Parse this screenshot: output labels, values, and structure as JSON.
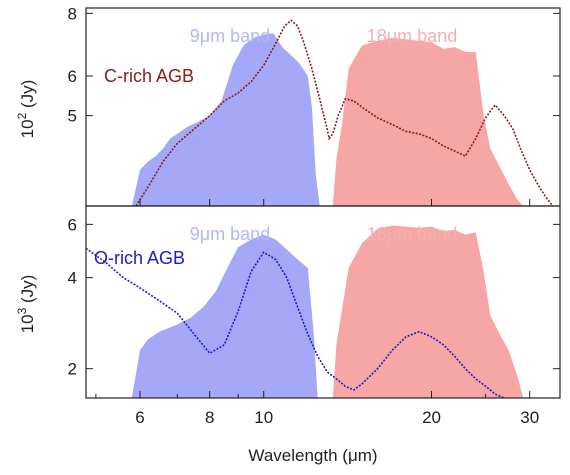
{
  "chart_data": {
    "type": "area",
    "xlabel": "Wavelength (μm)",
    "x_scale": "log",
    "xlim": [
      4.8,
      34
    ],
    "x_ticks": [
      6,
      8,
      10,
      20,
      30
    ],
    "x_tick_labels": [
      "6",
      "8",
      "10",
      "20",
      "30"
    ],
    "colors": {
      "band9": "#a4a8f7",
      "band18": "#f7a6a6",
      "crich": "#8b1a1a",
      "orich": "#1c1cc8",
      "band9_text": "#b3b7f5",
      "band18_text": "#f5b0b0"
    },
    "panels": [
      {
        "ylabel_base": "10",
        "ylabel_exp": "2",
        "ylabel_unit": " (Jy)",
        "y_scale": "log",
        "ylim": [
          3.3,
          8.2
        ],
        "y_ticks": [
          5,
          6,
          8
        ],
        "y_tick_labels": [
          "5",
          "6",
          "8"
        ],
        "band_labels": {
          "band9": "9μm band",
          "band18": "18μm band"
        },
        "curve_label": "C-rich AGB",
        "series": [
          {
            "name": "C-rich AGB",
            "x": [
              5.9,
              6.2,
              6.6,
              7.0,
              7.5,
              8.0,
              8.5,
              9.0,
              9.5,
              10.0,
              10.5,
              10.9,
              11.2,
              11.5,
              11.8,
              12.2,
              12.6,
              13.0,
              13.1,
              13.3,
              13.6,
              14.0,
              14.5,
              15.0,
              16.0,
              17.0,
              18.0,
              19.0,
              20.0,
              21.0,
              22.0,
              23.0,
              24.0,
              25.0,
              26.0,
              27.0,
              28.0,
              29.0,
              30.0,
              31.0,
              32.0,
              33.0
            ],
            "y": [
              3.3,
              3.6,
              4.05,
              4.4,
              4.7,
              5.0,
              5.35,
              5.55,
              5.85,
              6.3,
              6.95,
              7.55,
              7.75,
              7.55,
              7.0,
              6.2,
              5.4,
              4.7,
              4.5,
              4.6,
              5.0,
              5.4,
              5.35,
              5.2,
              4.95,
              4.8,
              4.65,
              4.6,
              4.5,
              4.35,
              4.25,
              4.15,
              4.5,
              4.95,
              5.25,
              5.0,
              4.7,
              4.25,
              3.9,
              3.65,
              3.45,
              3.3
            ]
          }
        ],
        "bands": [
          {
            "name": "band9",
            "x": [
              5.8,
              6.0,
              6.2,
              6.4,
              6.6,
              6.8,
              7.0,
              7.3,
              7.6,
              8.0,
              8.4,
              8.8,
              9.2,
              9.6,
              10.0,
              10.4,
              10.8,
              11.2,
              11.6,
              12.0,
              12.2,
              12.4,
              12.6
            ],
            "y": [
              3.3,
              3.9,
              4.05,
              4.15,
              4.3,
              4.5,
              4.6,
              4.75,
              4.85,
              5.0,
              5.35,
              6.3,
              6.9,
              7.15,
              7.25,
              7.3,
              6.85,
              6.6,
              6.35,
              6.0,
              5.2,
              3.8,
              3.3
            ]
          },
          {
            "name": "band18",
            "x": [
              13.3,
              13.5,
              13.8,
              14.2,
              15.0,
              16.0,
              17.0,
              18.0,
              19.0,
              20.0,
              21.0,
              22.0,
              23.0,
              24.0,
              24.8,
              25.5,
              26.5,
              27.5,
              28.5,
              29.2
            ],
            "y": [
              3.3,
              4.1,
              4.75,
              6.2,
              6.9,
              7.05,
              7.15,
              7.1,
              7.05,
              7.0,
              6.8,
              6.85,
              6.7,
              6.7,
              5.0,
              4.3,
              3.95,
              3.65,
              3.4,
              3.3
            ]
          }
        ]
      },
      {
        "ylabel_base": "10",
        "ylabel_exp": "3",
        "ylabel_unit": " (Jy)",
        "y_scale": "log",
        "ylim": [
          1.6,
          6.9
        ],
        "y_ticks": [
          2,
          4,
          6
        ],
        "y_tick_labels": [
          "2",
          "4",
          "6"
        ],
        "band_labels": {
          "band9": "9μm band",
          "band18": "18μm band"
        },
        "curve_label": "O-rich AGB",
        "series": [
          {
            "name": "O-rich AGB",
            "x": [
              4.8,
              5.2,
              5.6,
              6.0,
              6.5,
              7.0,
              7.5,
              8.0,
              8.5,
              9.0,
              9.5,
              10.0,
              10.5,
              11.0,
              11.5,
              12.0,
              12.5,
              13.0,
              13.5,
              14.0,
              14.5,
              15.0,
              16.0,
              17.0,
              18.0,
              19.0,
              20.0,
              21.0,
              22.0,
              23.0,
              24.0,
              25.0,
              26.0,
              27.0
            ],
            "y": [
              5.0,
              4.5,
              4.0,
              3.7,
              3.35,
              3.05,
              2.6,
              2.25,
              2.4,
              3.1,
              4.2,
              4.85,
              4.6,
              4.0,
              3.2,
              2.6,
              2.2,
              1.95,
              1.85,
              1.75,
              1.7,
              1.78,
              2.0,
              2.3,
              2.55,
              2.65,
              2.55,
              2.4,
              2.2,
              2.0,
              1.85,
              1.75,
              1.65,
              1.6
            ]
          }
        ],
        "bands": [
          {
            "name": "band9",
            "x": [
              5.8,
              6.0,
              6.2,
              6.5,
              7.0,
              7.4,
              7.8,
              8.2,
              8.6,
              9.0,
              9.5,
              10.0,
              10.5,
              11.0,
              11.5,
              12.0,
              12.3,
              12.5
            ],
            "y": [
              1.6,
              2.3,
              2.5,
              2.65,
              2.8,
              2.95,
              3.2,
              3.6,
              4.3,
              5.05,
              5.35,
              5.55,
              5.35,
              4.95,
              4.6,
              4.3,
              2.6,
              1.6
            ]
          },
          {
            "name": "band18",
            "x": [
              13.3,
              13.5,
              13.8,
              14.2,
              15.0,
              16.0,
              17.0,
              18.0,
              19.0,
              20.0,
              21.0,
              22.0,
              23.0,
              24.0,
              24.8,
              25.5,
              26.5,
              27.5,
              28.5,
              29.2
            ],
            "y": [
              1.6,
              2.4,
              3.1,
              4.3,
              5.2,
              5.8,
              5.95,
              5.9,
              5.85,
              5.9,
              5.7,
              5.75,
              5.55,
              5.65,
              4.2,
              3.0,
              2.6,
              2.3,
              1.9,
              1.6
            ]
          }
        ]
      }
    ]
  }
}
